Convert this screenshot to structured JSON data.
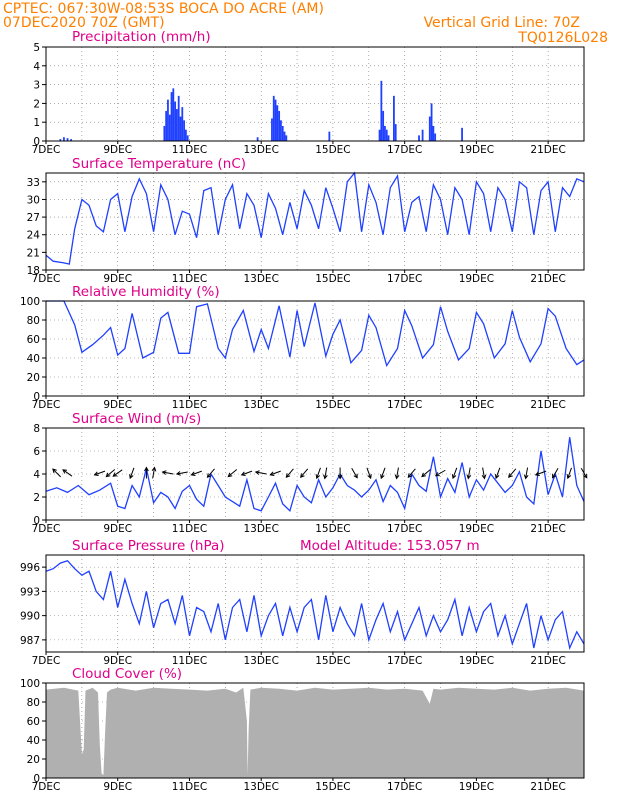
{
  "header": {
    "line1": "CPTEC:   067:30W-08:53S   BOCA DO ACRE (AM)",
    "line2": "07DEC2020 70Z (GMT)",
    "right1": "Vertical Grid Line: 70Z",
    "right2": "TQ0126L028"
  },
  "colors": {
    "header": "#ff7f00",
    "title": "#e0008a",
    "series": "#2040ff",
    "cloud": "#b0b0b0",
    "wind_arrow": "#000000"
  },
  "chart_data": [
    {
      "type": "bar",
      "title": "Precipitation (mm/h)",
      "x_ticks": [
        "7DEC",
        "9DEC",
        "11DEC",
        "13DEC",
        "15DEC",
        "17DEC",
        "19DEC",
        "21DEC"
      ],
      "x_range_days": [
        7,
        22
      ],
      "ylim": [
        0,
        5
      ],
      "y_ticks": [
        "0",
        "1",
        "2",
        "3",
        "4",
        "5"
      ],
      "grid": true,
      "bars": [
        [
          7.4,
          0.1
        ],
        [
          7.5,
          0.2
        ],
        [
          7.6,
          0.15
        ],
        [
          7.7,
          0.1
        ],
        [
          10.3,
          0.8
        ],
        [
          10.35,
          1.6
        ],
        [
          10.4,
          2.2
        ],
        [
          10.45,
          1.4
        ],
        [
          10.5,
          2.6
        ],
        [
          10.55,
          2.8
        ],
        [
          10.6,
          2.1
        ],
        [
          10.65,
          1.7
        ],
        [
          10.7,
          2.4
        ],
        [
          10.75,
          1.3
        ],
        [
          10.8,
          1.8
        ],
        [
          10.85,
          1.1
        ],
        [
          10.9,
          0.6
        ],
        [
          10.95,
          0.3
        ],
        [
          12.9,
          0.2
        ],
        [
          13.3,
          1.2
        ],
        [
          13.35,
          2.4
        ],
        [
          13.4,
          2.2
        ],
        [
          13.45,
          1.9
        ],
        [
          13.5,
          1.6
        ],
        [
          13.55,
          1.1
        ],
        [
          13.6,
          0.8
        ],
        [
          13.65,
          0.5
        ],
        [
          13.7,
          0.3
        ],
        [
          14.9,
          0.5
        ],
        [
          16.3,
          0.6
        ],
        [
          16.35,
          3.2
        ],
        [
          16.4,
          1.6
        ],
        [
          16.45,
          0.8
        ],
        [
          16.5,
          0.6
        ],
        [
          16.55,
          0.3
        ],
        [
          16.7,
          2.4
        ],
        [
          16.75,
          0.9
        ],
        [
          17.4,
          0.3
        ],
        [
          17.5,
          0.6
        ],
        [
          17.7,
          1.3
        ],
        [
          17.75,
          2.0
        ],
        [
          17.8,
          0.8
        ],
        [
          17.85,
          0.4
        ],
        [
          18.6,
          0.7
        ]
      ]
    },
    {
      "type": "line",
      "title": "Surface Temperature (nC)",
      "x_ticks": [
        "7DEC",
        "9DEC",
        "11DEC",
        "13DEC",
        "15DEC",
        "17DEC",
        "19DEC",
        "21DEC"
      ],
      "ylim": [
        18,
        34.5
      ],
      "y_ticks": [
        "18",
        "21",
        "24",
        "27",
        "30",
        "33"
      ],
      "grid": true,
      "x": [
        7.0,
        7.2,
        7.5,
        7.65,
        7.8,
        8.0,
        8.2,
        8.4,
        8.6,
        8.8,
        9.0,
        9.2,
        9.4,
        9.6,
        9.8,
        10.0,
        10.2,
        10.4,
        10.6,
        10.8,
        11.0,
        11.2,
        11.4,
        11.6,
        11.8,
        12.0,
        12.2,
        12.4,
        12.6,
        12.8,
        13.0,
        13.2,
        13.4,
        13.6,
        13.8,
        14.0,
        14.2,
        14.4,
        14.6,
        14.8,
        15.0,
        15.2,
        15.4,
        15.6,
        15.8,
        16.0,
        16.2,
        16.4,
        16.6,
        16.8,
        17.0,
        17.2,
        17.4,
        17.6,
        17.8,
        18.0,
        18.2,
        18.4,
        18.6,
        18.8,
        19.0,
        19.2,
        19.4,
        19.6,
        19.8,
        20.0,
        20.2,
        20.4,
        20.6,
        20.8,
        21.0,
        21.2,
        21.4,
        21.6,
        21.8,
        22.0
      ],
      "values": [
        20.5,
        19.5,
        19.2,
        19.0,
        25.0,
        30.0,
        29.0,
        25.5,
        24.5,
        30.0,
        31.0,
        24.5,
        30.5,
        33.5,
        31.0,
        24.5,
        32.5,
        30.0,
        24.0,
        28.0,
        27.5,
        23.5,
        31.5,
        32.0,
        24.0,
        30.0,
        32.5,
        25.0,
        31.0,
        29.0,
        23.5,
        31.0,
        28.5,
        24.0,
        29.5,
        25.0,
        31.5,
        29.0,
        25.0,
        32.0,
        28.5,
        24.5,
        33.0,
        34.5,
        24.5,
        32.5,
        29.5,
        24.0,
        32.0,
        34.0,
        24.5,
        29.5,
        30.5,
        24.5,
        32.5,
        30.0,
        24.0,
        32.0,
        30.0,
        24.0,
        33.0,
        31.0,
        24.5,
        32.0,
        30.0,
        24.5,
        33.0,
        32.0,
        24.0,
        31.5,
        33.0,
        24.5,
        32.0,
        30.5,
        33.5,
        33.0
      ]
    },
    {
      "type": "line",
      "title": "Relative Humidity (%)",
      "x_ticks": [
        "7DEC",
        "9DEC",
        "11DEC",
        "13DEC",
        "15DEC",
        "17DEC",
        "19DEC",
        "21DEC"
      ],
      "ylim": [
        0,
        100
      ],
      "y_ticks": [
        "0",
        "20",
        "40",
        "60",
        "80",
        "100"
      ],
      "grid": true,
      "x": [
        7.0,
        7.2,
        7.5,
        7.8,
        8.0,
        8.3,
        8.6,
        8.8,
        9.0,
        9.2,
        9.4,
        9.7,
        10.0,
        10.2,
        10.4,
        10.7,
        11.0,
        11.2,
        11.5,
        11.8,
        12.0,
        12.2,
        12.5,
        12.8,
        13.0,
        13.2,
        13.5,
        13.8,
        14.0,
        14.2,
        14.5,
        14.8,
        15.0,
        15.2,
        15.5,
        15.8,
        16.0,
        16.2,
        16.5,
        16.8,
        17.0,
        17.2,
        17.5,
        17.8,
        18.0,
        18.2,
        18.5,
        18.8,
        19.0,
        19.2,
        19.5,
        19.8,
        20.0,
        20.2,
        20.5,
        20.8,
        21.0,
        21.2,
        21.5,
        21.8,
        22.0
      ],
      "values": [
        100,
        100,
        100,
        75,
        46,
        54,
        64,
        72,
        43,
        50,
        87,
        40,
        46,
        82,
        88,
        45,
        45,
        94,
        97,
        50,
        40,
        70,
        90,
        47,
        70,
        50,
        95,
        41,
        90,
        52,
        98,
        42,
        65,
        80,
        35,
        48,
        85,
        72,
        32,
        50,
        90,
        74,
        40,
        54,
        94,
        68,
        38,
        50,
        88,
        76,
        40,
        55,
        90,
        62,
        36,
        55,
        92,
        84,
        50,
        33,
        38
      ]
    },
    {
      "type": "line",
      "title": "Surface Wind (m/s)",
      "x_ticks": [
        "7DEC",
        "9DEC",
        "11DEC",
        "13DEC",
        "15DEC",
        "17DEC",
        "19DEC",
        "21DEC"
      ],
      "ylim": [
        0,
        8
      ],
      "y_ticks": [
        "0",
        "2",
        "4",
        "6",
        "8"
      ],
      "grid": true,
      "x": [
        7.0,
        7.3,
        7.6,
        7.9,
        8.2,
        8.5,
        8.8,
        9.0,
        9.2,
        9.4,
        9.6,
        9.8,
        10.0,
        10.2,
        10.4,
        10.6,
        10.8,
        11.0,
        11.2,
        11.4,
        11.6,
        11.8,
        12.0,
        12.2,
        12.4,
        12.6,
        12.8,
        13.0,
        13.2,
        13.4,
        13.6,
        13.8,
        14.0,
        14.2,
        14.4,
        14.6,
        14.8,
        15.0,
        15.2,
        15.4,
        15.6,
        15.8,
        16.0,
        16.2,
        16.4,
        16.6,
        16.8,
        17.0,
        17.2,
        17.4,
        17.6,
        17.8,
        18.0,
        18.2,
        18.4,
        18.6,
        18.8,
        19.0,
        19.2,
        19.4,
        19.6,
        19.8,
        20.0,
        20.2,
        20.4,
        20.6,
        20.8,
        21.0,
        21.2,
        21.4,
        21.6,
        21.8,
        22.0
      ],
      "values": [
        2.5,
        2.8,
        2.4,
        3.0,
        2.2,
        2.6,
        3.2,
        1.2,
        1.0,
        3.0,
        2.0,
        4.5,
        1.5,
        2.4,
        2.0,
        1.0,
        2.5,
        3.0,
        1.8,
        1.2,
        4.0,
        3.0,
        2.0,
        1.6,
        1.2,
        3.5,
        1.0,
        0.8,
        2.0,
        3.2,
        1.4,
        0.8,
        3.0,
        2.0,
        1.5,
        3.5,
        2.0,
        2.8,
        4.0,
        3.0,
        2.6,
        2.0,
        2.6,
        3.5,
        1.6,
        3.0,
        2.4,
        1.0,
        4.0,
        3.0,
        2.5,
        5.5,
        2.0,
        3.6,
        2.4,
        5.0,
        2.0,
        3.5,
        2.6,
        4.0,
        3.2,
        2.4,
        3.0,
        4.2,
        2.0,
        1.4,
        6.0,
        2.2,
        4.0,
        2.0,
        7.2,
        3.0,
        1.6
      ],
      "arrows": [
        [
          7.3,
          135
        ],
        [
          7.6,
          145
        ],
        [
          8.5,
          200
        ],
        [
          8.8,
          220
        ],
        [
          9.0,
          215
        ],
        [
          9.4,
          250
        ],
        [
          9.8,
          90
        ],
        [
          10.0,
          80
        ],
        [
          10.4,
          170
        ],
        [
          10.8,
          190
        ],
        [
          11.2,
          200
        ],
        [
          11.6,
          230
        ],
        [
          12.2,
          220
        ],
        [
          12.6,
          200
        ],
        [
          13.0,
          170
        ],
        [
          13.4,
          200
        ],
        [
          13.8,
          230
        ],
        [
          14.2,
          230
        ],
        [
          14.6,
          250
        ],
        [
          14.8,
          260
        ],
        [
          15.2,
          270
        ],
        [
          15.6,
          300
        ],
        [
          16.0,
          290
        ],
        [
          16.4,
          250
        ],
        [
          16.8,
          260
        ],
        [
          17.2,
          230
        ],
        [
          17.6,
          220
        ],
        [
          18.0,
          210
        ],
        [
          18.4,
          250
        ],
        [
          18.8,
          260
        ],
        [
          19.2,
          280
        ],
        [
          19.6,
          250
        ],
        [
          20.0,
          230
        ],
        [
          20.4,
          260
        ],
        [
          20.8,
          200
        ],
        [
          21.2,
          240
        ],
        [
          21.6,
          250
        ],
        [
          22.0,
          300
        ]
      ]
    },
    {
      "type": "line",
      "title": "Surface Pressure (hPa)",
      "annotation": "Model Altitude: 153.057  m",
      "x_ticks": [
        "7DEC",
        "9DEC",
        "11DEC",
        "13DEC",
        "15DEC",
        "17DEC",
        "19DEC",
        "21DEC"
      ],
      "ylim": [
        985.5,
        997.5
      ],
      "y_ticks": [
        "987",
        "990",
        "993",
        "996"
      ],
      "grid": true,
      "x": [
        7.0,
        7.2,
        7.4,
        7.6,
        7.8,
        8.0,
        8.2,
        8.4,
        8.6,
        8.8,
        9.0,
        9.2,
        9.4,
        9.6,
        9.8,
        10.0,
        10.2,
        10.4,
        10.6,
        10.8,
        11.0,
        11.2,
        11.4,
        11.6,
        11.8,
        12.0,
        12.2,
        12.4,
        12.6,
        12.8,
        13.0,
        13.2,
        13.4,
        13.6,
        13.8,
        14.0,
        14.2,
        14.4,
        14.6,
        14.8,
        15.0,
        15.2,
        15.4,
        15.6,
        15.8,
        16.0,
        16.2,
        16.4,
        16.6,
        16.8,
        17.0,
        17.2,
        17.4,
        17.6,
        17.8,
        18.0,
        18.2,
        18.4,
        18.6,
        18.8,
        19.0,
        19.2,
        19.4,
        19.6,
        19.8,
        20.0,
        20.2,
        20.4,
        20.6,
        20.8,
        21.0,
        21.2,
        21.4,
        21.6,
        21.8,
        22.0
      ],
      "values": [
        995.5,
        995.8,
        996.5,
        996.8,
        995.8,
        995.0,
        995.5,
        993.0,
        992.0,
        995.5,
        991.0,
        994.5,
        991.5,
        989.0,
        993.0,
        988.5,
        991.5,
        992.0,
        989.0,
        992.5,
        987.5,
        991.0,
        990.5,
        988.0,
        991.5,
        987.0,
        991.0,
        992.0,
        988.0,
        992.5,
        987.5,
        990.0,
        991.5,
        987.5,
        991.0,
        988.0,
        991.0,
        992.0,
        987.0,
        992.5,
        988.0,
        991.0,
        989.0,
        987.5,
        991.5,
        987.0,
        989.5,
        991.5,
        988.0,
        990.5,
        987.0,
        989.0,
        991.0,
        987.5,
        990.0,
        988.0,
        989.5,
        992.0,
        987.5,
        991.0,
        988.0,
        990.5,
        991.5,
        987.5,
        990.0,
        986.5,
        989.0,
        991.5,
        986.0,
        990.0,
        987.0,
        989.5,
        990.5,
        986.0,
        988.0,
        986.5
      ]
    },
    {
      "type": "area",
      "title": "Cloud Cover (%)",
      "x_ticks": [
        "7DEC",
        "9DEC",
        "11DEC",
        "13DEC",
        "15DEC",
        "17DEC",
        "19DEC",
        "21DEC"
      ],
      "ylim": [
        0,
        100
      ],
      "y_ticks": [
        "0",
        "20",
        "40",
        "60",
        "80",
        "100"
      ],
      "grid": true,
      "x": [
        7.0,
        7.5,
        7.9,
        8.0,
        8.05,
        8.1,
        8.3,
        8.45,
        8.5,
        8.55,
        8.6,
        8.65,
        8.7,
        8.8,
        9.0,
        9.5,
        10.0,
        10.5,
        11.0,
        11.5,
        12.0,
        12.3,
        12.5,
        12.6,
        12.62,
        12.65,
        12.7,
        13.0,
        13.5,
        14.0,
        14.5,
        15.0,
        15.5,
        16.0,
        16.5,
        17.0,
        17.5,
        17.7,
        17.8,
        18.0,
        18.5,
        19.0,
        19.5,
        20.0,
        20.5,
        21.0,
        21.5,
        22.0
      ],
      "values": [
        93,
        95,
        92,
        25,
        30,
        92,
        95,
        90,
        35,
        5,
        3,
        50,
        90,
        93,
        95,
        92,
        95,
        94,
        93,
        92,
        94,
        90,
        95,
        60,
        3,
        50,
        93,
        95,
        94,
        92,
        95,
        93,
        94,
        95,
        93,
        94,
        92,
        78,
        94,
        93,
        95,
        94,
        93,
        95,
        92,
        94,
        95,
        92
      ]
    }
  ]
}
